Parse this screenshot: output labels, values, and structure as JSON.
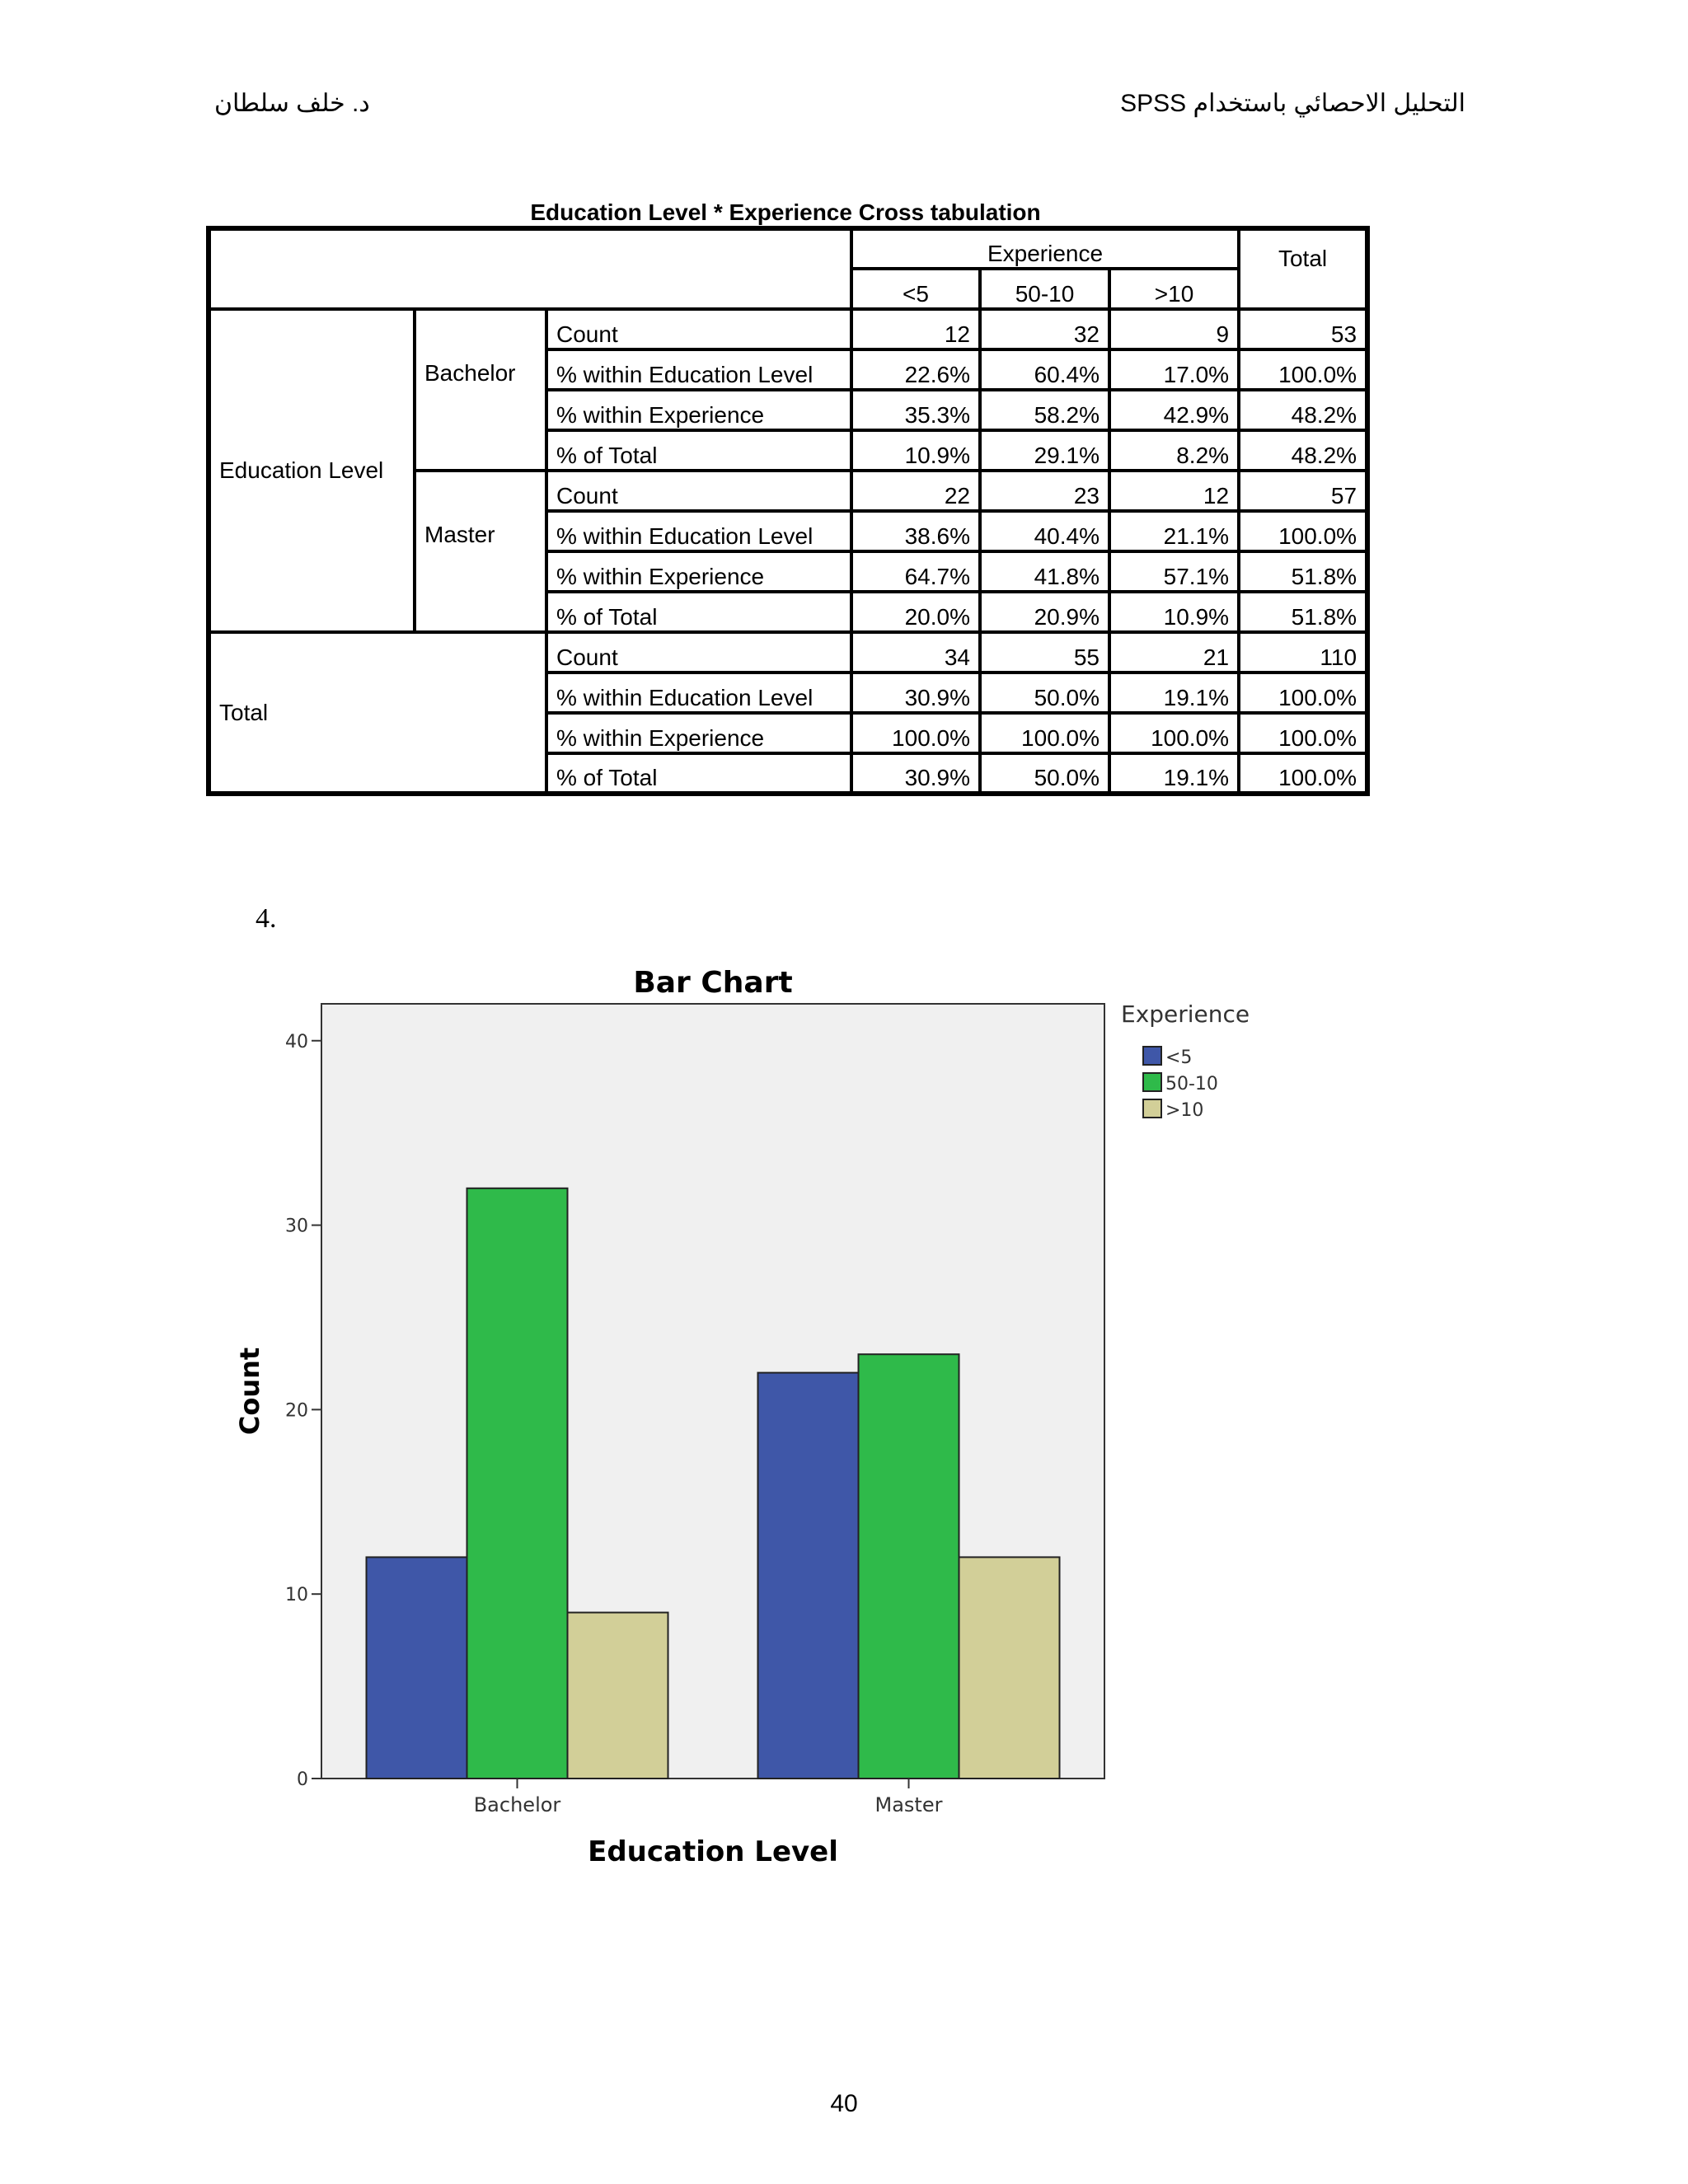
{
  "header": {
    "right_text": "التحليل الاحصائي باستخدام SPSS",
    "left_text": "د. خلف سلطان"
  },
  "crosstab": {
    "title": "Education Level * Experience Cross tabulation",
    "col_group_label": "Experience",
    "total_label": "Total",
    "columns": [
      "<5",
      "50-10",
      ">10"
    ],
    "row_group_label": "Education Level",
    "groups": [
      {
        "label": "Bachelor",
        "rows": [
          {
            "stat": "Count",
            "values": [
              "12",
              "32",
              "9",
              "53"
            ]
          },
          {
            "stat": "% within Education Level",
            "values": [
              "22.6%",
              "60.4%",
              "17.0%",
              "100.0%"
            ]
          },
          {
            "stat": "% within Experience",
            "values": [
              "35.3%",
              "58.2%",
              "42.9%",
              "48.2%"
            ]
          },
          {
            "stat": "% of Total",
            "values": [
              "10.9%",
              "29.1%",
              "8.2%",
              "48.2%"
            ]
          }
        ]
      },
      {
        "label": "Master",
        "rows": [
          {
            "stat": "Count",
            "values": [
              "22",
              "23",
              "12",
              "57"
            ]
          },
          {
            "stat": "% within Education Level",
            "values": [
              "38.6%",
              "40.4%",
              "21.1%",
              "100.0%"
            ]
          },
          {
            "stat": "% within Experience",
            "values": [
              "64.7%",
              "41.8%",
              "57.1%",
              "51.8%"
            ]
          },
          {
            "stat": "% of Total",
            "values": [
              "20.0%",
              "20.9%",
              "10.9%",
              "51.8%"
            ]
          }
        ]
      }
    ],
    "total_group": {
      "label": "Total",
      "rows": [
        {
          "stat": "Count",
          "values": [
            "34",
            "55",
            "21",
            "110"
          ]
        },
        {
          "stat": "% within Education Level",
          "values": [
            "30.9%",
            "50.0%",
            "19.1%",
            "100.0%"
          ]
        },
        {
          "stat": "% within Experience",
          "values": [
            "100.0%",
            "100.0%",
            "100.0%",
            "100.0%"
          ]
        },
        {
          "stat": "% of Total",
          "values": [
            "30.9%",
            "50.0%",
            "19.1%",
            "100.0%"
          ]
        }
      ]
    }
  },
  "item_number": "4.",
  "chart_data": {
    "type": "bar",
    "title": "Bar Chart",
    "xlabel": "Education Level",
    "ylabel": "Count",
    "categories": [
      "Bachelor",
      "Master"
    ],
    "series": [
      {
        "name": "<5",
        "values": [
          12,
          22
        ],
        "color": "#3f57a8"
      },
      {
        "name": "50-10",
        "values": [
          32,
          23
        ],
        "color": "#2fba4a"
      },
      {
        "name": ">10",
        "values": [
          9,
          12
        ],
        "color": "#d2cf98"
      }
    ],
    "ylim": [
      0,
      42
    ],
    "yticks": [
      "0",
      "10",
      "20",
      "30",
      "40"
    ],
    "legend_title": "Experience",
    "legend_position": "right",
    "background": "#f0f0f0",
    "grid": false
  },
  "page_number": "40"
}
